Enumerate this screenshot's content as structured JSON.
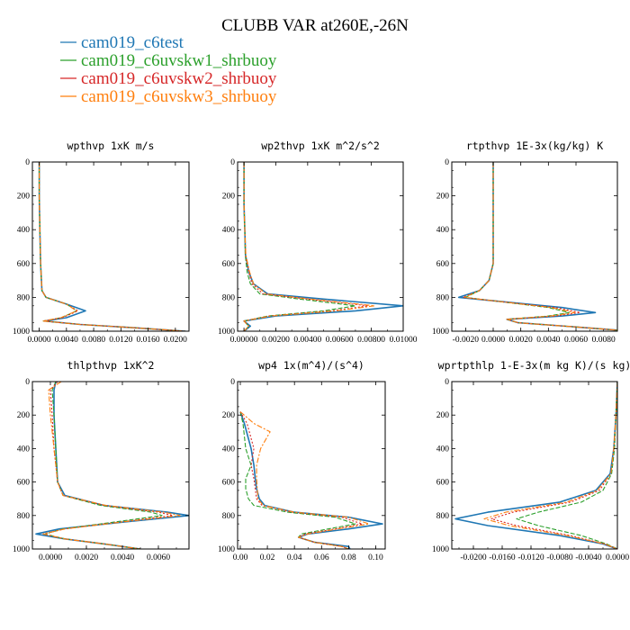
{
  "figure": {
    "title": "CLUBB VAR at260E,-26N"
  },
  "legend": [
    {
      "name": "cam019_c6test",
      "color": "#1f77b4",
      "dash": "solid"
    },
    {
      "name": "cam019_c6uvskw1_shrbuoy",
      "color": "#2ca02c",
      "dash": "dashed"
    },
    {
      "name": "cam019_c6uvskw2_shrbuoy",
      "color": "#d62728",
      "dash": "dashed"
    },
    {
      "name": "cam019_c6uvskw3_shrbuoy",
      "color": "#ff7f0e",
      "dash": "dashed"
    }
  ],
  "chart_data": [
    {
      "type": "line",
      "title": "wpthvp   1xK m/s",
      "xlim": [
        -0.001,
        0.022
      ],
      "ylim": [
        1000,
        0
      ],
      "xticks": [
        0.0,
        0.004,
        0.008,
        0.012,
        0.016,
        0.02
      ],
      "xtick_labels": [
        "0.0000",
        "0.0040",
        "0.0080",
        "0.0120",
        "0.0160",
        "0.0200"
      ],
      "yticks": [
        0,
        200,
        400,
        600,
        800,
        1000
      ],
      "ytick_labels": [
        "0",
        "200",
        "400",
        "600",
        "800",
        "1000"
      ],
      "series": [
        {
          "x": [
            0.0,
            0.0,
            0.0001,
            0.0002,
            0.0004,
            0.001,
            0.004,
            0.0068,
            0.004,
            0.0008,
            0.006,
            0.014,
            0.0215
          ],
          "y": [
            0,
            200,
            400,
            600,
            760,
            800,
            840,
            880,
            920,
            940,
            960,
            980,
            1000
          ]
        },
        {
          "x": [
            0.0,
            0.0,
            0.0001,
            0.0002,
            0.0004,
            0.001,
            0.004,
            0.0055,
            0.0032,
            0.0006,
            0.006,
            0.014,
            0.0215
          ],
          "y": [
            0,
            200,
            400,
            600,
            760,
            800,
            840,
            880,
            920,
            940,
            960,
            980,
            1000
          ]
        },
        {
          "x": [
            0.0,
            0.0,
            0.0001,
            0.0002,
            0.0004,
            0.001,
            0.004,
            0.0057,
            0.0034,
            0.0006,
            0.006,
            0.014,
            0.0215
          ],
          "y": [
            0,
            200,
            400,
            600,
            760,
            800,
            840,
            880,
            920,
            940,
            960,
            980,
            1000
          ]
        },
        {
          "x": [
            0.0,
            0.0,
            0.0001,
            0.0002,
            0.0004,
            0.001,
            0.004,
            0.0055,
            0.0032,
            0.0006,
            0.006,
            0.014,
            0.0215
          ],
          "y": [
            0,
            200,
            400,
            600,
            760,
            800,
            840,
            880,
            920,
            940,
            960,
            980,
            1000
          ]
        }
      ]
    },
    {
      "type": "line",
      "title": "wp2thvp   1xK m^2/s^2",
      "xlim": [
        -0.0004,
        0.01
      ],
      "ylim": [
        1000,
        0
      ],
      "xticks": [
        0.0,
        0.002,
        0.004,
        0.006,
        0.008,
        0.01
      ],
      "xtick_labels": [
        "0.00000",
        "0.00200",
        "0.00400",
        "0.00600",
        "0.00800",
        "0.01000"
      ],
      "yticks": [
        0,
        200,
        400,
        600,
        800,
        1000
      ],
      "ytick_labels": [
        "0",
        "200",
        "400",
        "600",
        "800",
        "1000"
      ],
      "series": [
        {
          "x": [
            0.0,
            0.0,
            5e-05,
            0.0001,
            0.0003,
            0.0006,
            0.0015,
            0.005,
            0.01,
            0.007,
            0.002,
            0.0,
            0.0004,
            0.0
          ],
          "y": [
            0,
            250,
            400,
            550,
            650,
            720,
            780,
            810,
            850,
            880,
            910,
            940,
            970,
            1000
          ]
        },
        {
          "x": [
            0.0,
            0.0,
            5e-05,
            8e-05,
            0.0002,
            0.0004,
            0.001,
            0.0035,
            0.007,
            0.005,
            0.0015,
            0.0,
            0.0003,
            0.0
          ],
          "y": [
            0,
            250,
            400,
            550,
            650,
            720,
            780,
            810,
            850,
            880,
            910,
            940,
            970,
            1000
          ]
        },
        {
          "x": [
            0.0,
            0.0,
            5e-05,
            0.0001,
            0.0003,
            0.0005,
            0.0012,
            0.004,
            0.0078,
            0.0055,
            0.0016,
            0.0,
            0.0003,
            0.0
          ],
          "y": [
            0,
            250,
            400,
            550,
            650,
            720,
            780,
            810,
            850,
            880,
            910,
            940,
            970,
            1000
          ]
        },
        {
          "x": [
            0.0,
            0.0,
            5e-05,
            0.00012,
            0.00035,
            0.0006,
            0.0014,
            0.0042,
            0.0082,
            0.0058,
            0.0017,
            0.0,
            0.0003,
            0.0
          ],
          "y": [
            0,
            250,
            400,
            550,
            650,
            720,
            780,
            810,
            850,
            880,
            910,
            940,
            970,
            1000
          ]
        }
      ]
    },
    {
      "type": "line",
      "title": "rtpthvp   1E-3x(kg/kg) K",
      "xlim": [
        -0.003,
        0.009
      ],
      "ylim": [
        1000,
        0
      ],
      "xticks": [
        -0.002,
        0.0,
        0.002,
        0.004,
        0.006
      ],
      "xtick_labels": [
        "-0.0020",
        "0.0000",
        "0.0020",
        "0.0040",
        "0.0060"
      ],
      "extra_tick_label": {
        "x": 0.008,
        "label": "0.0080"
      },
      "yticks": [
        0,
        200,
        400,
        600,
        800,
        1000
      ],
      "ytick_labels": [
        "0",
        "200",
        "400",
        "600",
        "800",
        "1000"
      ],
      "series": [
        {
          "x": [
            0.0,
            0.0,
            0.0,
            0.0,
            -0.0003,
            -0.001,
            -0.0025,
            0.0,
            0.005,
            0.0074,
            0.005,
            0.001,
            0.0018,
            0.006,
            0.01
          ],
          "y": [
            0,
            200,
            400,
            600,
            700,
            760,
            800,
            820,
            860,
            890,
            910,
            930,
            950,
            975,
            1000
          ]
        },
        {
          "x": [
            0.0,
            0.0,
            0.0,
            0.0,
            -0.0003,
            -0.001,
            -0.002,
            0.0,
            0.004,
            0.0055,
            0.004,
            0.001,
            0.0018,
            0.006,
            0.01
          ],
          "y": [
            0,
            200,
            400,
            600,
            700,
            760,
            800,
            820,
            860,
            890,
            910,
            930,
            950,
            975,
            1000
          ]
        },
        {
          "x": [
            0.0,
            0.0,
            0.0,
            0.0,
            -0.0003,
            -0.001,
            -0.0022,
            0.0,
            0.0045,
            0.0063,
            0.0045,
            0.001,
            0.0018,
            0.006,
            0.01
          ],
          "y": [
            0,
            200,
            400,
            600,
            700,
            760,
            800,
            820,
            860,
            890,
            910,
            930,
            950,
            975,
            1000
          ]
        },
        {
          "x": [
            0.0,
            0.0,
            0.0,
            0.0,
            -0.0003,
            -0.001,
            -0.0021,
            0.0,
            0.0042,
            0.0059,
            0.0042,
            0.001,
            0.0018,
            0.006,
            0.01
          ],
          "y": [
            0,
            200,
            400,
            600,
            700,
            760,
            800,
            820,
            860,
            890,
            910,
            930,
            950,
            975,
            1000
          ]
        }
      ]
    },
    {
      "type": "line",
      "title": "thlpthvp   1xK^2",
      "xlim": [
        -0.001,
        0.0077
      ],
      "ylim": [
        1000,
        0
      ],
      "xticks": [
        0.0,
        0.002,
        0.004,
        0.006
      ],
      "xtick_labels": [
        "0.0000",
        "0.0020",
        "0.0040",
        "0.0060"
      ],
      "yticks": [
        0,
        200,
        400,
        600,
        800,
        1000
      ],
      "ytick_labels": [
        "0",
        "200",
        "400",
        "600",
        "800",
        "1000"
      ],
      "series": [
        {
          "x": [
            0.0003,
            0.0002,
            0.0002,
            0.0003,
            0.0004,
            0.0008,
            0.003,
            0.0065,
            0.0077,
            0.004,
            0.0005,
            -0.0008,
            0.0008,
            0.003,
            0.005
          ],
          "y": [
            0,
            50,
            200,
            400,
            600,
            680,
            740,
            780,
            800,
            840,
            880,
            910,
            940,
            970,
            1000
          ]
        },
        {
          "x": [
            0.0003,
            0.0001,
            0.0002,
            0.0003,
            0.0004,
            0.0007,
            0.0028,
            0.0056,
            0.0062,
            0.0035,
            0.0007,
            -0.0003,
            0.0008,
            0.003,
            0.005
          ],
          "y": [
            0,
            50,
            200,
            400,
            600,
            680,
            740,
            780,
            800,
            840,
            880,
            910,
            940,
            970,
            1000
          ]
        },
        {
          "x": [
            0.0004,
            0.0,
            0.0001,
            0.0002,
            0.0004,
            0.0007,
            0.003,
            0.006,
            0.0068,
            0.0038,
            0.0008,
            -0.0004,
            0.0008,
            0.003,
            0.005
          ],
          "y": [
            0,
            50,
            200,
            400,
            600,
            680,
            740,
            780,
            800,
            840,
            880,
            910,
            940,
            970,
            1000
          ]
        },
        {
          "x": [
            0.0006,
            -0.0001,
            0.0,
            0.0002,
            0.0004,
            0.0007,
            0.0031,
            0.0063,
            0.0072,
            0.0039,
            0.0008,
            -0.0004,
            0.0008,
            0.003,
            0.005
          ],
          "y": [
            0,
            50,
            200,
            400,
            600,
            680,
            740,
            780,
            800,
            840,
            880,
            910,
            940,
            970,
            1000
          ]
        }
      ]
    },
    {
      "type": "line",
      "title": "wp4   1x(m^4)/(s^4)",
      "xlim": [
        -0.002,
        0.107
      ],
      "ylim": [
        1000,
        0
      ],
      "xticks": [
        0.0,
        0.02,
        0.04,
        0.06,
        0.08,
        0.1
      ],
      "xtick_labels": [
        "0.00",
        "0.02",
        "0.04",
        "0.06",
        "0.08",
        "0.10"
      ],
      "yticks": [
        0,
        200,
        400,
        600,
        800,
        1000
      ],
      "ytick_labels": [
        "0",
        "200",
        "400",
        "600",
        "800",
        "1000"
      ],
      "series": [
        {
          "x": [
            0.0,
            0.003,
            0.008,
            0.01,
            0.011,
            0.012,
            0.014,
            0.018,
            0.04,
            0.08,
            0.105,
            0.08,
            0.05,
            0.043,
            0.055,
            0.08,
            0.081
          ],
          "y": [
            180,
            250,
            400,
            500,
            580,
            640,
            700,
            740,
            780,
            810,
            850,
            880,
            910,
            930,
            960,
            985,
            1000
          ]
        },
        {
          "x": [
            0.0,
            0.002,
            0.004,
            0.008,
            0.004,
            0.004,
            0.006,
            0.01,
            0.035,
            0.07,
            0.085,
            0.065,
            0.045,
            0.043,
            0.055,
            0.075,
            0.08
          ],
          "y": [
            180,
            250,
            400,
            500,
            580,
            640,
            700,
            740,
            780,
            810,
            850,
            880,
            910,
            930,
            960,
            985,
            1000
          ]
        },
        {
          "x": [
            0.0,
            0.005,
            0.01,
            0.008,
            0.01,
            0.011,
            0.012,
            0.016,
            0.038,
            0.075,
            0.09,
            0.07,
            0.048,
            0.043,
            0.055,
            0.075,
            0.08
          ],
          "y": [
            180,
            250,
            400,
            500,
            580,
            640,
            700,
            740,
            780,
            810,
            850,
            880,
            910,
            930,
            960,
            985,
            1000
          ]
        },
        {
          "x": [
            0.0,
            0.01,
            0.022,
            0.015,
            0.012,
            0.012,
            0.013,
            0.017,
            0.04,
            0.08,
            0.095,
            0.072,
            0.05,
            0.043,
            0.055,
            0.075,
            0.08
          ],
          "y": [
            180,
            250,
            300,
            400,
            500,
            580,
            700,
            740,
            780,
            810,
            850,
            880,
            910,
            930,
            960,
            985,
            1000
          ]
        }
      ]
    },
    {
      "type": "line",
      "title": "wprtpthlp   1-E-3x(m kg K)/(s kg)",
      "xlim": [
        -0.023,
        0.0
      ],
      "ylim": [
        1000,
        0
      ],
      "xticks": [
        -0.02,
        -0.016,
        -0.012,
        -0.008,
        -0.004,
        0.0
      ],
      "xtick_labels": [
        "-0.0200",
        "-0.0160",
        "-0.0120",
        "-0.0080",
        "-0.0040",
        "0.0000"
      ],
      "yticks": [
        0,
        200,
        400,
        600,
        800,
        1000
      ],
      "ytick_labels": [
        "0",
        "200",
        "400",
        "600",
        "800",
        "1000"
      ],
      "series": [
        {
          "x": [
            0.0,
            -0.0002,
            -0.0005,
            -0.001,
            -0.003,
            -0.008,
            -0.018,
            -0.0225,
            -0.018,
            -0.008,
            -0.002,
            0.0
          ],
          "y": [
            0,
            200,
            400,
            550,
            650,
            720,
            780,
            820,
            860,
            920,
            970,
            1000
          ]
        },
        {
          "x": [
            0.0,
            -0.0002,
            -0.0004,
            -0.0008,
            -0.002,
            -0.005,
            -0.011,
            -0.014,
            -0.011,
            -0.005,
            -0.0015,
            0.0
          ],
          "y": [
            0,
            200,
            400,
            550,
            650,
            720,
            780,
            820,
            860,
            920,
            970,
            1000
          ]
        },
        {
          "x": [
            0.0,
            -0.0002,
            -0.0005,
            -0.0009,
            -0.0025,
            -0.0065,
            -0.0145,
            -0.0175,
            -0.014,
            -0.0065,
            -0.0018,
            0.0
          ],
          "y": [
            0,
            200,
            400,
            550,
            650,
            720,
            780,
            820,
            860,
            920,
            970,
            1000
          ]
        },
        {
          "x": [
            0.0,
            -0.0002,
            -0.0005,
            -0.0009,
            -0.0028,
            -0.007,
            -0.0155,
            -0.0185,
            -0.015,
            -0.007,
            -0.0018,
            0.0
          ],
          "y": [
            0,
            200,
            400,
            550,
            650,
            720,
            780,
            820,
            860,
            920,
            970,
            1000
          ]
        }
      ]
    }
  ]
}
